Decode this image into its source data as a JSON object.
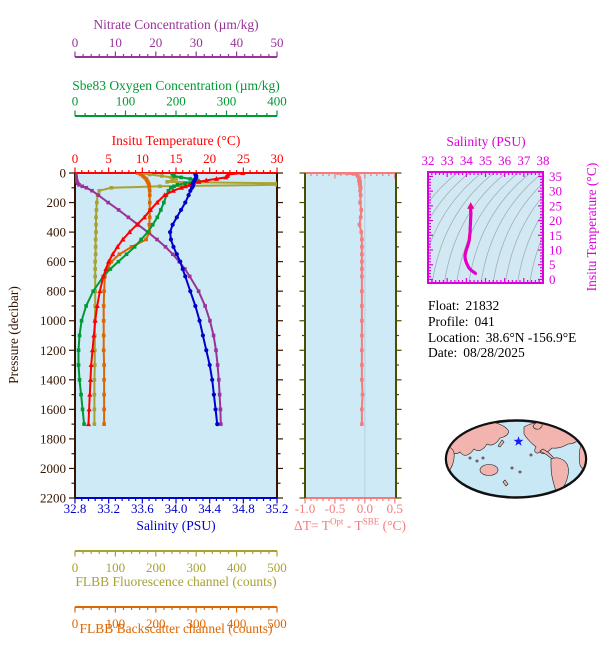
{
  "info": {
    "float_label": "Float:",
    "float_value": "21832",
    "profile_label": "Profile:",
    "profile_value": "041",
    "location_label": "Location:",
    "location_value": "38.6°N -156.9°E",
    "date_label": "Date:",
    "date_value": "08/28/2025"
  },
  "delta_title": {
    "pre": "ΔT= T",
    "sup1": "Opt",
    "mid": " - T",
    "sup2": "SBE",
    "post": " (°C)"
  },
  "colors": {
    "pressure_axis": "#331400",
    "delta_side_axis": "#4d4d00",
    "delta_curve": "#f47c7c",
    "plot_bg": "#cdeaf6",
    "ts_bg": "#d2e9f3",
    "ts_axis": "#dd00dd",
    "ts_curve": "#ee0099",
    "contour": "#9fb0b8",
    "zero_grid": "#b9cdda",
    "map_ocean": "#c9e8f5",
    "map_land": "#f2b4ae",
    "map_outline": "#111111",
    "star": "#1a1aff"
  },
  "chart_data": [
    {
      "id": "profile",
      "type": "line",
      "ylabel": "Pressure (decibar)",
      "ylim": [
        0,
        2200
      ],
      "ytick_step": 200,
      "yminor_step": 100,
      "pressure": [
        0,
        10,
        20,
        30,
        40,
        50,
        60,
        70,
        80,
        90,
        100,
        120,
        150,
        200,
        250,
        300,
        350,
        400,
        450,
        500,
        550,
        600,
        650,
        700,
        800,
        900,
        1000,
        1100,
        1200,
        1300,
        1400,
        1500,
        1600,
        1700
      ],
      "series": [
        {
          "name": "nitrate",
          "label": "Nitrate Concentration (µm/kg)",
          "color": "#993399",
          "xlim": [
            0,
            50
          ],
          "xtick_step": 10,
          "xminor_step": 2,
          "decimals": 0,
          "marker": "square",
          "values": [
            0.2,
            0.2,
            0.2,
            0.3,
            0.3,
            0.4,
            0.5,
            0.7,
            1.0,
            1.8,
            2.8,
            4.2,
            5.8,
            8.2,
            10.8,
            13.2,
            15.6,
            18.0,
            20.3,
            22.4,
            24.2,
            25.8,
            27.2,
            28.4,
            30.6,
            32.2,
            33.4,
            34.3,
            34.9,
            35.3,
            35.6,
            35.8,
            36.0,
            36.1
          ]
        },
        {
          "name": "oxygen",
          "label": "Sbe83 Oxygen Concentration (µm/kg)",
          "color": "#009933",
          "xlim": [
            0,
            400
          ],
          "xtick_step": 100,
          "xminor_step": 20,
          "decimals": 0,
          "marker": "square",
          "values": [
            192,
            194,
            196,
            210,
            228,
            243,
            235,
            218,
            203,
            196,
            190,
            185,
            181,
            176,
            170,
            163,
            154,
            144,
            131,
            118,
            102,
            86,
            70,
            56,
            36,
            22,
            13,
            9,
            7,
            7,
            9,
            12,
            15,
            18
          ]
        },
        {
          "name": "temperature",
          "label": "Insitu Temperature (°C)",
          "color": "#ff0000",
          "xlim": [
            0,
            30
          ],
          "xtick_step": 5,
          "xminor_step": 1,
          "decimals": 0,
          "marker": "triangle",
          "values": [
            24.9,
            22.7,
            22.6,
            22.4,
            21.0,
            19.5,
            18.4,
            17.6,
            17.0,
            16.4,
            15.8,
            14.6,
            13.3,
            12.2,
            11.2,
            10.3,
            9.2,
            8.1,
            7.1,
            6.3,
            5.6,
            5.0,
            4.6,
            4.2,
            3.7,
            3.3,
            3.0,
            2.8,
            2.6,
            2.4,
            2.3,
            2.2,
            2.1,
            2.0
          ]
        },
        {
          "name": "salinity",
          "label": "Salinity (PSU)",
          "color": "#0000cc",
          "xlim": [
            32.8,
            35.2
          ],
          "xtick_step": 0.4,
          "xminor_step": 0.08,
          "decimals": 1,
          "marker": "circle",
          "values": [
            34.23,
            34.23,
            34.24,
            34.24,
            34.23,
            34.22,
            34.21,
            34.2,
            34.2,
            34.2,
            34.19,
            34.17,
            34.15,
            34.11,
            34.06,
            34.01,
            33.96,
            33.93,
            33.94,
            33.97,
            34.01,
            34.05,
            34.08,
            34.11,
            34.17,
            34.23,
            34.28,
            34.32,
            34.36,
            34.4,
            34.43,
            34.45,
            34.47,
            34.49
          ]
        },
        {
          "name": "fluorescence",
          "label": "FLBB Fluorescence channel (counts)",
          "color": "#a8a232",
          "xlim": [
            0,
            500
          ],
          "xtick_step": 100,
          "xminor_step": 20,
          "decimals": 0,
          "marker": "square",
          "values": [
            165,
            185,
            215,
            238,
            250,
            242,
            228,
            500,
            500,
            210,
            90,
            60,
            56,
            54,
            53,
            52,
            52,
            52,
            51,
            51,
            51,
            50,
            50,
            50,
            50,
            50,
            49,
            49,
            49,
            49,
            48,
            48,
            48,
            48
          ]
        },
        {
          "name": "backscatter",
          "label": "FLBB Backscatter channel (counts)",
          "color": "#dd6600",
          "xlim": [
            0,
            500
          ],
          "xtick_step": 100,
          "xminor_step": 20,
          "decimals": 0,
          "marker": "square",
          "values": [
            155,
            162,
            168,
            172,
            176,
            178,
            180,
            182,
            183,
            184,
            184,
            185,
            185,
            185,
            185,
            185,
            184,
            184,
            176,
            140,
            110,
            90,
            80,
            74,
            72,
            71,
            71,
            71,
            71,
            72,
            72,
            72,
            72,
            72
          ]
        }
      ]
    },
    {
      "id": "delta",
      "type": "line",
      "xlim": [
        -1.0,
        0.52
      ],
      "xticks": [
        -1.0,
        -0.5,
        0.0,
        0.5
      ],
      "xminor_step": 0.1,
      "ylim": [
        0,
        2200
      ],
      "zero_gridline": 0.0,
      "pressure": [
        0,
        10,
        20,
        30,
        40,
        50,
        60,
        70,
        80,
        90,
        100,
        120,
        150,
        200,
        250,
        300,
        350,
        400,
        450,
        500,
        550,
        600,
        650,
        700,
        800,
        900,
        1000,
        1100,
        1200,
        1300,
        1400,
        1500,
        1600,
        1700
      ],
      "values": [
        -0.45,
        -0.14,
        -0.12,
        -0.1,
        -0.09,
        -0.1,
        -0.08,
        -0.09,
        -0.08,
        -0.08,
        -0.07,
        -0.08,
        -0.07,
        -0.08,
        -0.06,
        -0.07,
        -0.09,
        -0.06,
        -0.05,
        -0.05,
        -0.05,
        -0.05,
        -0.05,
        -0.05,
        -0.05,
        -0.05,
        -0.05,
        -0.05,
        -0.05,
        -0.05,
        -0.05,
        -0.04,
        -0.05,
        -0.05
      ]
    },
    {
      "id": "ts",
      "type": "line",
      "title": "Salinity (PSU)",
      "ylabel": "Insitu Temperature (°C)",
      "xlim": [
        32,
        38
      ],
      "xtick_step": 1,
      "xminor_step": 0.2,
      "ylim": [
        -1.2,
        36.5
      ],
      "ytick_step": 5,
      "yminor_step": 1,
      "note": "curve uses salinity vs temperature arrays from profile chart"
    }
  ],
  "map": {
    "star_x": 518.5,
    "star_y": 441.5
  }
}
